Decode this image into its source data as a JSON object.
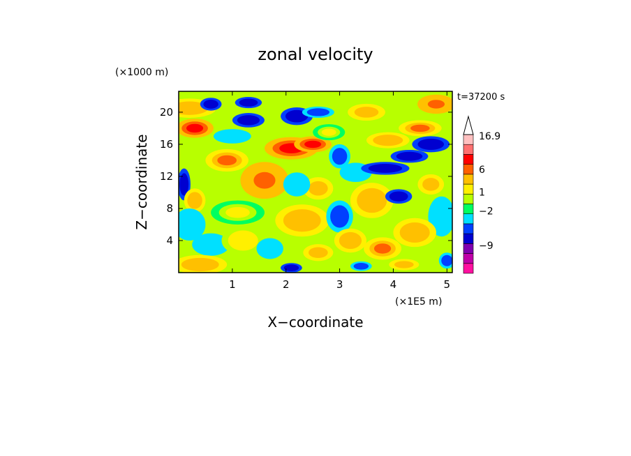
{
  "chart_data": {
    "type": "heatmap",
    "title": "zonal velocity",
    "xlabel": "X−coordinate",
    "ylabel": "Z−coordinate",
    "x_unit": "(×1E5 m)",
    "y_unit": "(×1000 m)",
    "time_label": "t=37200 s",
    "xlim": [
      0,
      5.1
    ],
    "ylim": [
      0,
      22.6
    ],
    "xticks": [
      1,
      2,
      3,
      4,
      5
    ],
    "yticks": [
      4,
      8,
      12,
      16,
      20
    ],
    "colorbar": {
      "levels": [
        {
          "value": -12,
          "color": "#ff10a0"
        },
        {
          "value": -9,
          "color": "#c000a8"
        },
        {
          "value": -6,
          "color": "#8000b0"
        },
        {
          "value": -4,
          "color": "#0000d0"
        },
        {
          "value": -2,
          "color": "#0040ff"
        },
        {
          "value": -1,
          "color": "#00e0ff"
        },
        {
          "value": 0,
          "color": "#00ff60"
        },
        {
          "value": 0.5,
          "color": "#b8ff00"
        },
        {
          "value": 1,
          "color": "#fff000"
        },
        {
          "value": 2,
          "color": "#ffc000"
        },
        {
          "value": 4,
          "color": "#ff6000"
        },
        {
          "value": 6,
          "color": "#ff0000"
        },
        {
          "value": 10,
          "color": "#ff7070"
        },
        {
          "value": 14,
          "color": "#ffc0c0"
        }
      ],
      "labels": [
        "16.9",
        "6",
        "1",
        "−2",
        "−9"
      ],
      "max": 16.9
    },
    "features": [
      {
        "x": 0.3,
        "z": 18.0,
        "v": 6,
        "sx": 0.35,
        "sz": 1.2
      },
      {
        "x": 0.2,
        "z": 20.5,
        "v": 3,
        "sx": 0.5,
        "sz": 1.2
      },
      {
        "x": 0.6,
        "z": 21.0,
        "v": -3,
        "sx": 0.2,
        "sz": 0.8
      },
      {
        "x": 1.3,
        "z": 19.0,
        "v": -3,
        "sx": 0.3,
        "sz": 0.9
      },
      {
        "x": 1.3,
        "z": 21.2,
        "v": -3,
        "sx": 0.25,
        "sz": 0.7
      },
      {
        "x": 1.0,
        "z": 17.0,
        "v": -1,
        "sx": 0.35,
        "sz": 0.9
      },
      {
        "x": 0.9,
        "z": 14.0,
        "v": 4,
        "sx": 0.4,
        "sz": 1.4
      },
      {
        "x": 1.6,
        "z": 11.5,
        "v": 5,
        "sx": 0.45,
        "sz": 2.3
      },
      {
        "x": 2.1,
        "z": 15.5,
        "v": 6,
        "sx": 0.5,
        "sz": 1.4
      },
      {
        "x": 2.5,
        "z": 16.0,
        "v": 7,
        "sx": 0.35,
        "sz": 1.0
      },
      {
        "x": 2.2,
        "z": 19.5,
        "v": -3,
        "sx": 0.3,
        "sz": 1.1
      },
      {
        "x": 2.6,
        "z": 20.0,
        "v": -2,
        "sx": 0.3,
        "sz": 0.7
      },
      {
        "x": 0.1,
        "z": 11.0,
        "v": -4,
        "sx": 0.12,
        "sz": 2.0
      },
      {
        "x": 0.3,
        "z": 9.0,
        "v": 3,
        "sx": 0.2,
        "sz": 1.5
      },
      {
        "x": 0.2,
        "z": 6.0,
        "v": -1,
        "sx": 0.3,
        "sz": 2.0
      },
      {
        "x": 0.6,
        "z": 3.5,
        "v": -1,
        "sx": 0.35,
        "sz": 1.4
      },
      {
        "x": 0.4,
        "z": 1.0,
        "v": 3,
        "sx": 0.5,
        "sz": 1.2
      },
      {
        "x": 1.2,
        "z": 4.0,
        "v": 1.5,
        "sx": 0.4,
        "sz": 1.8
      },
      {
        "x": 1.7,
        "z": 3.0,
        "v": -1,
        "sx": 0.25,
        "sz": 1.3
      },
      {
        "x": 1.1,
        "z": 7.5,
        "v": 1,
        "sx": 0.5,
        "sz": 1.5
      },
      {
        "x": 2.3,
        "z": 6.5,
        "v": 3,
        "sx": 0.5,
        "sz": 2.0
      },
      {
        "x": 2.6,
        "z": 10.5,
        "v": 2,
        "sx": 0.4,
        "sz": 2.0
      },
      {
        "x": 2.2,
        "z": 11.0,
        "v": -1,
        "sx": 0.25,
        "sz": 1.5
      },
      {
        "x": 2.1,
        "z": 0.6,
        "v": -3,
        "sx": 0.2,
        "sz": 0.6
      },
      {
        "x": 2.6,
        "z": 2.5,
        "v": 2,
        "sx": 0.4,
        "sz": 1.5
      },
      {
        "x": 3.0,
        "z": 7.0,
        "v": -1.5,
        "sx": 0.25,
        "sz": 2.0
      },
      {
        "x": 3.2,
        "z": 4.0,
        "v": 3,
        "sx": 0.3,
        "sz": 1.5
      },
      {
        "x": 3.6,
        "z": 9.0,
        "v": 3,
        "sx": 0.4,
        "sz": 2.2
      },
      {
        "x": 3.3,
        "z": 12.5,
        "v": -1,
        "sx": 0.3,
        "sz": 1.2
      },
      {
        "x": 3.85,
        "z": 13.0,
        "v": -4,
        "sx": 0.45,
        "sz": 0.8
      },
      {
        "x": 4.3,
        "z": 14.5,
        "v": -4,
        "sx": 0.35,
        "sz": 0.8
      },
      {
        "x": 4.7,
        "z": 16.0,
        "v": -4,
        "sx": 0.35,
        "sz": 1.0
      },
      {
        "x": 3.9,
        "z": 16.5,
        "v": 3,
        "sx": 0.4,
        "sz": 1.0
      },
      {
        "x": 4.5,
        "z": 18.0,
        "v": 4,
        "sx": 0.4,
        "sz": 1.0
      },
      {
        "x": 4.8,
        "z": 21.0,
        "v": 5,
        "sx": 0.35,
        "sz": 1.2
      },
      {
        "x": 3.5,
        "z": 20.0,
        "v": 2,
        "sx": 0.5,
        "sz": 1.5
      },
      {
        "x": 4.1,
        "z": 9.5,
        "v": -3,
        "sx": 0.25,
        "sz": 0.9
      },
      {
        "x": 4.7,
        "z": 11.0,
        "v": 2,
        "sx": 0.35,
        "sz": 1.8
      },
      {
        "x": 4.9,
        "z": 7.0,
        "v": -1,
        "sx": 0.25,
        "sz": 2.5
      },
      {
        "x": 4.4,
        "z": 5.0,
        "v": 3,
        "sx": 0.4,
        "sz": 1.8
      },
      {
        "x": 3.8,
        "z": 3.0,
        "v": 4,
        "sx": 0.35,
        "sz": 1.4
      },
      {
        "x": 4.2,
        "z": 1.0,
        "v": 2,
        "sx": 0.4,
        "sz": 1.0
      },
      {
        "x": 5.0,
        "z": 1.5,
        "v": -2,
        "sx": 0.15,
        "sz": 1.0
      },
      {
        "x": 3.4,
        "z": 0.8,
        "v": -2,
        "sx": 0.2,
        "sz": 0.6
      },
      {
        "x": 3.0,
        "z": 14.5,
        "v": -1.5,
        "sx": 0.2,
        "sz": 1.5
      },
      {
        "x": 2.8,
        "z": 17.5,
        "v": 1,
        "sx": 0.3,
        "sz": 1.0
      }
    ]
  }
}
